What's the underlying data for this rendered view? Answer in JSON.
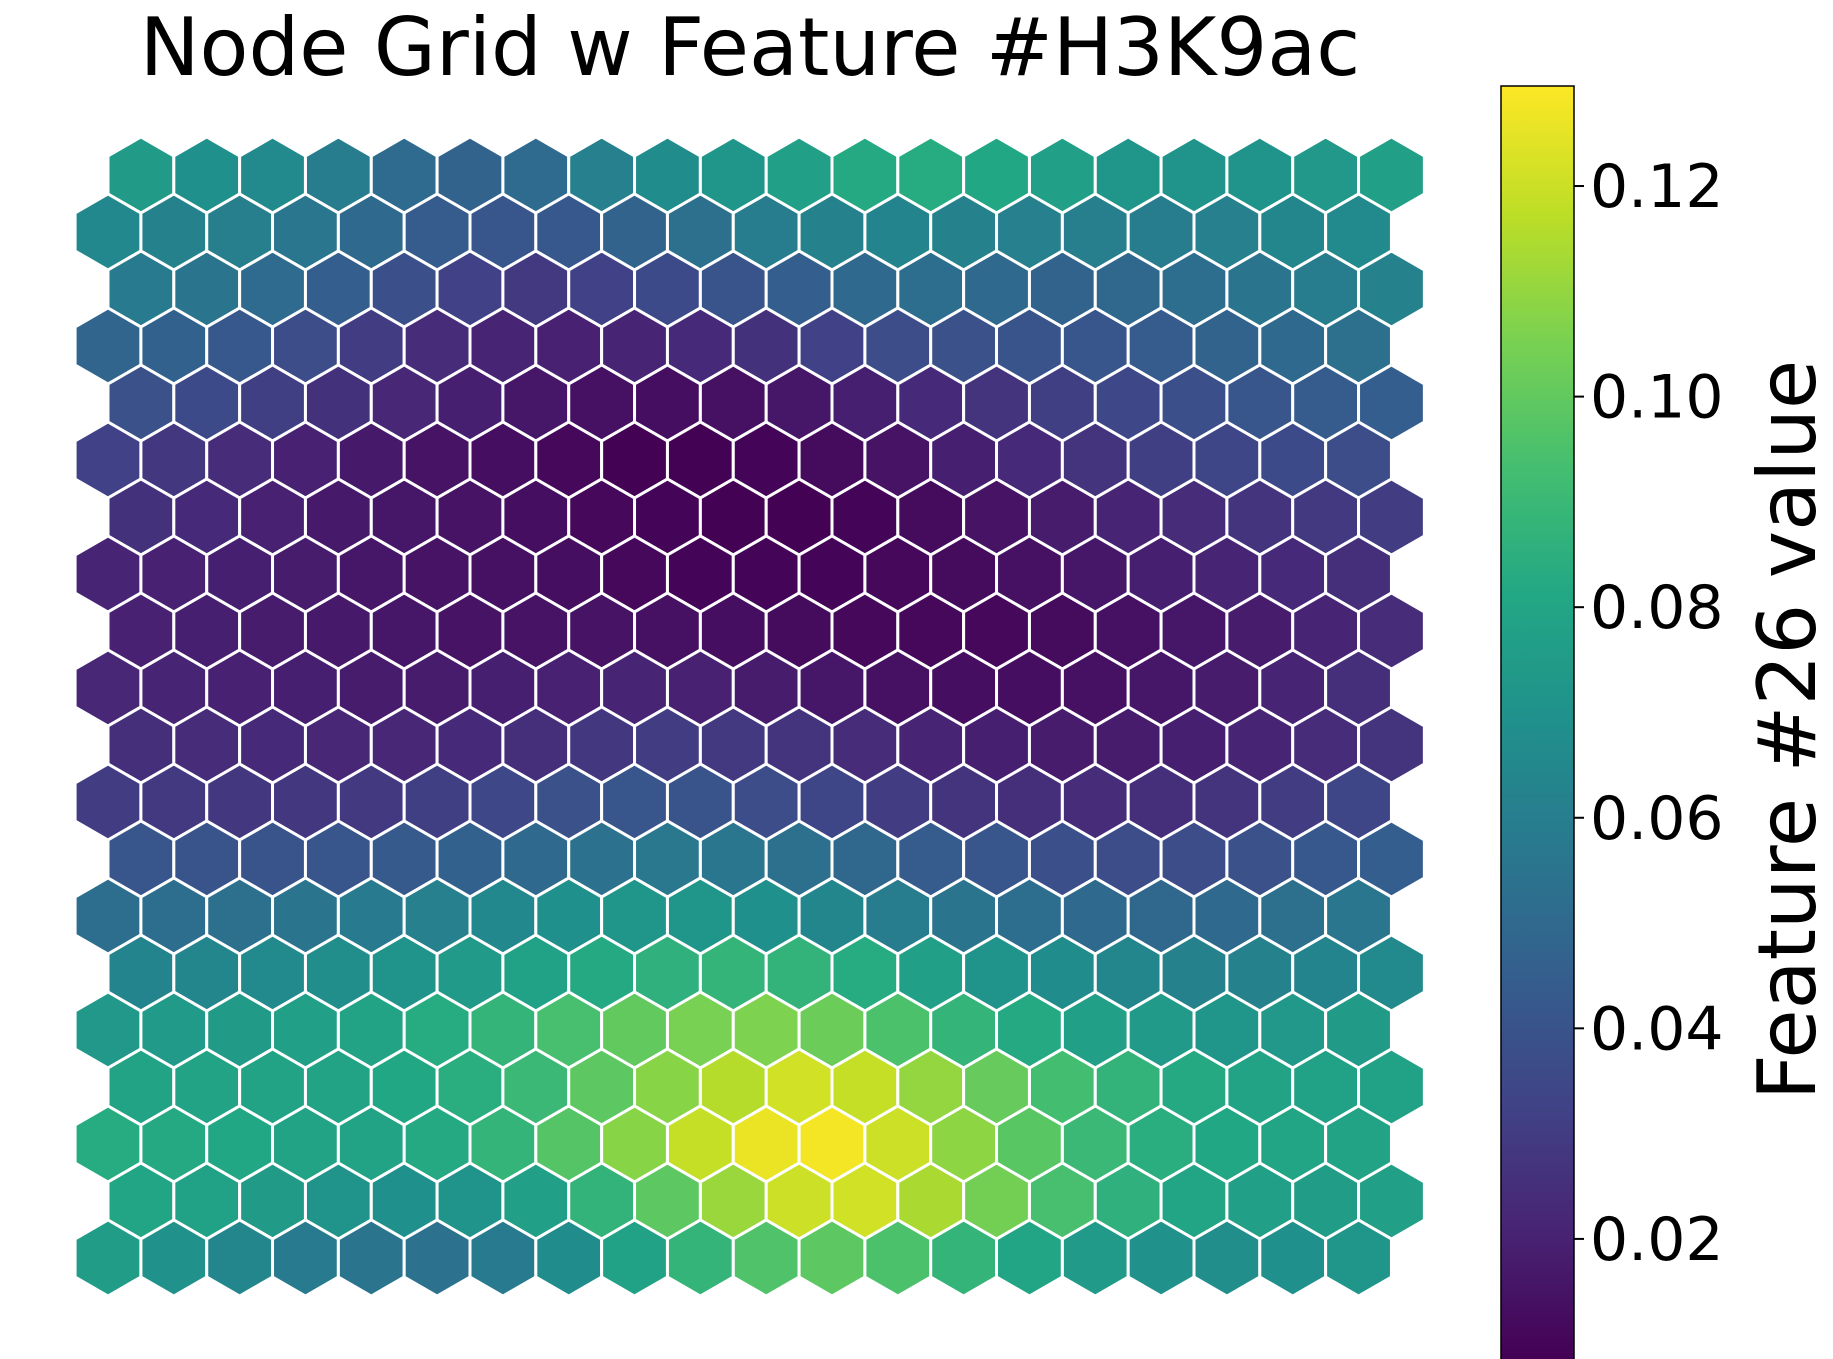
{
  "chart_data": {
    "type": "heatmap",
    "title": "Node Grid w Feature #H3K9ac",
    "colorbar": {
      "label": "Feature #26 value",
      "range": [
        0.0085,
        0.1295
      ],
      "ticks": [
        "0.02",
        "0.04",
        "0.06",
        "0.08",
        "0.10",
        "0.12"
      ],
      "colormap": "viridis"
    },
    "grid": {
      "rows": 20,
      "cols": 20,
      "layout": "hexagonal",
      "row_order": "top-to-bottom",
      "values": [
        [
          0.075,
          0.069,
          0.066,
          0.059,
          0.051,
          0.047,
          0.051,
          0.061,
          0.067,
          0.072,
          0.077,
          0.082,
          0.083,
          0.081,
          0.077,
          0.072,
          0.071,
          0.071,
          0.073,
          0.077
        ],
        [
          0.065,
          0.062,
          0.06,
          0.056,
          0.05,
          0.044,
          0.041,
          0.042,
          0.047,
          0.053,
          0.059,
          0.062,
          0.063,
          0.062,
          0.061,
          0.06,
          0.059,
          0.061,
          0.064,
          0.066
        ],
        [
          0.058,
          0.055,
          0.051,
          0.045,
          0.038,
          0.032,
          0.029,
          0.032,
          0.036,
          0.04,
          0.045,
          0.05,
          0.052,
          0.05,
          0.047,
          0.049,
          0.052,
          0.055,
          0.059,
          0.062
        ],
        [
          0.048,
          0.046,
          0.042,
          0.037,
          0.03,
          0.024,
          0.021,
          0.02,
          0.021,
          0.023,
          0.026,
          0.032,
          0.037,
          0.039,
          0.04,
          0.041,
          0.044,
          0.047,
          0.05,
          0.053
        ],
        [
          0.039,
          0.036,
          0.031,
          0.026,
          0.022,
          0.019,
          0.016,
          0.014,
          0.013,
          0.014,
          0.016,
          0.019,
          0.023,
          0.027,
          0.031,
          0.035,
          0.038,
          0.041,
          0.044,
          0.045
        ],
        [
          0.032,
          0.028,
          0.024,
          0.02,
          0.017,
          0.015,
          0.013,
          0.011,
          0.009,
          0.009,
          0.01,
          0.012,
          0.015,
          0.019,
          0.023,
          0.027,
          0.031,
          0.034,
          0.036,
          0.037
        ],
        [
          0.026,
          0.023,
          0.02,
          0.017,
          0.016,
          0.015,
          0.013,
          0.011,
          0.01,
          0.009,
          0.009,
          0.01,
          0.012,
          0.015,
          0.018,
          0.021,
          0.024,
          0.027,
          0.029,
          0.03
        ],
        [
          0.021,
          0.02,
          0.019,
          0.018,
          0.016,
          0.015,
          0.014,
          0.013,
          0.011,
          0.01,
          0.01,
          0.01,
          0.011,
          0.012,
          0.014,
          0.016,
          0.019,
          0.021,
          0.023,
          0.025
        ],
        [
          0.02,
          0.019,
          0.018,
          0.017,
          0.016,
          0.015,
          0.015,
          0.015,
          0.014,
          0.013,
          0.012,
          0.011,
          0.011,
          0.011,
          0.012,
          0.014,
          0.016,
          0.018,
          0.021,
          0.024
        ],
        [
          0.022,
          0.021,
          0.02,
          0.019,
          0.018,
          0.018,
          0.019,
          0.02,
          0.021,
          0.02,
          0.018,
          0.016,
          0.014,
          0.013,
          0.013,
          0.014,
          0.016,
          0.018,
          0.021,
          0.025
        ],
        [
          0.025,
          0.024,
          0.023,
          0.022,
          0.022,
          0.023,
          0.025,
          0.028,
          0.03,
          0.029,
          0.027,
          0.024,
          0.021,
          0.019,
          0.018,
          0.018,
          0.019,
          0.021,
          0.024,
          0.027
        ],
        [
          0.03,
          0.029,
          0.028,
          0.028,
          0.029,
          0.031,
          0.035,
          0.039,
          0.041,
          0.04,
          0.037,
          0.034,
          0.03,
          0.027,
          0.025,
          0.024,
          0.025,
          0.027,
          0.03,
          0.034
        ],
        [
          0.041,
          0.04,
          0.04,
          0.041,
          0.043,
          0.046,
          0.05,
          0.054,
          0.057,
          0.056,
          0.053,
          0.049,
          0.044,
          0.041,
          0.038,
          0.037,
          0.037,
          0.039,
          0.042,
          0.045
        ],
        [
          0.052,
          0.052,
          0.053,
          0.055,
          0.058,
          0.061,
          0.065,
          0.069,
          0.072,
          0.072,
          0.069,
          0.064,
          0.059,
          0.055,
          0.052,
          0.05,
          0.049,
          0.05,
          0.053,
          0.056
        ],
        [
          0.063,
          0.064,
          0.066,
          0.068,
          0.071,
          0.074,
          0.078,
          0.082,
          0.086,
          0.088,
          0.087,
          0.083,
          0.077,
          0.071,
          0.067,
          0.064,
          0.062,
          0.062,
          0.063,
          0.066
        ],
        [
          0.073,
          0.074,
          0.075,
          0.077,
          0.079,
          0.083,
          0.088,
          0.094,
          0.1,
          0.105,
          0.106,
          0.102,
          0.095,
          0.088,
          0.082,
          0.077,
          0.074,
          0.072,
          0.073,
          0.075
        ],
        [
          0.079,
          0.079,
          0.079,
          0.079,
          0.081,
          0.084,
          0.09,
          0.099,
          0.108,
          0.116,
          0.121,
          0.119,
          0.11,
          0.101,
          0.093,
          0.087,
          0.082,
          0.079,
          0.078,
          0.078
        ],
        [
          0.083,
          0.082,
          0.081,
          0.079,
          0.079,
          0.082,
          0.088,
          0.097,
          0.108,
          0.119,
          0.126,
          0.128,
          0.12,
          0.109,
          0.098,
          0.09,
          0.084,
          0.081,
          0.08,
          0.079
        ],
        [
          0.08,
          0.078,
          0.075,
          0.071,
          0.069,
          0.071,
          0.077,
          0.087,
          0.099,
          0.111,
          0.12,
          0.121,
          0.114,
          0.104,
          0.094,
          0.086,
          0.08,
          0.077,
          0.076,
          0.077
        ],
        [
          0.076,
          0.07,
          0.064,
          0.058,
          0.055,
          0.054,
          0.058,
          0.067,
          0.078,
          0.088,
          0.096,
          0.099,
          0.095,
          0.088,
          0.08,
          0.074,
          0.07,
          0.068,
          0.069,
          0.072
        ]
      ]
    }
  }
}
